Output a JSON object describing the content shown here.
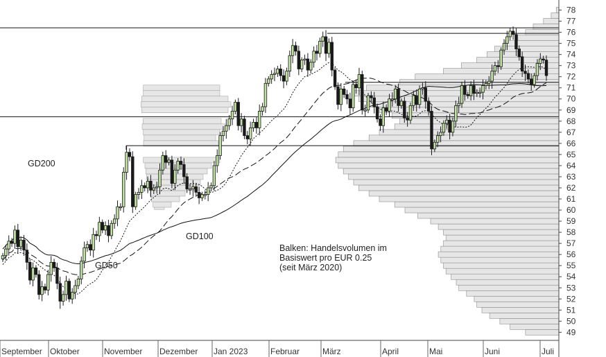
{
  "chart_data": {
    "type": "candlestick",
    "x_axis": {
      "labels": [
        "September",
        "Oktober",
        "November",
        "Dezember",
        "Jan 2023",
        "Februar",
        "März",
        "April",
        "Mai",
        "Juni",
        "Juli"
      ]
    },
    "y_axis": {
      "position": "right",
      "min": 48,
      "max": 78.5,
      "ticks": [
        49,
        50,
        51,
        52,
        53,
        54,
        55,
        56,
        57,
        58,
        59,
        60,
        61,
        62,
        63,
        64,
        65,
        66,
        67,
        68,
        69,
        70,
        71,
        72,
        73,
        74,
        75,
        76,
        77,
        78
      ]
    },
    "moving_average_labels": {
      "gd200": "GD200",
      "gd100": "GD100",
      "gd50": "GD50"
    },
    "annotation": {
      "line1": "Balken: Handelsvolumen im",
      "line2": "Basiswert pro EUR 0.25",
      "line3": "(seit März 2020)"
    },
    "horizontal_lines": [
      76.4,
      75.9,
      68.4,
      65.8,
      71.5
    ],
    "close": [
      55.9,
      56.5,
      57.2,
      57.0,
      58.2,
      56.7,
      57.3,
      56.4,
      55.3,
      53.7,
      54.8,
      54.2,
      52.4,
      53.1,
      52.8,
      54.2,
      55.3,
      54.8,
      53.4,
      51.8,
      52.4,
      53.6,
      52.0,
      52.6,
      53.2,
      53.8,
      55.4,
      56.6,
      56.9,
      56.4,
      57.8,
      57.7,
      58.9,
      58.2,
      58.6,
      57.7,
      58.8,
      59.2,
      60.3,
      60.3,
      63.4,
      65.2,
      64.8,
      60.3,
      61.4,
      61.6,
      62.2,
      62.0,
      62.6,
      61.8,
      62.0,
      62.1,
      63.6,
      64.9,
      64.3,
      64.5,
      62.4,
      63.6,
      64.4,
      64.1,
      63.0,
      61.9,
      61.9,
      62.1,
      61.6,
      61.1,
      61.4,
      61.4,
      62.0,
      62.2,
      64.0,
      64.9,
      66.7,
      67.1,
      67.6,
      68.2,
      68.9,
      69.7,
      67.6,
      68.2,
      66.7,
      66.4,
      67.4,
      67.9,
      67.4,
      68.9,
      69.3,
      71.4,
      71.8,
      72.2,
      72.3,
      72.7,
      72.1,
      71.6,
      72.5,
      73.9,
      74.8,
      74.3,
      72.7,
      73.5,
      73.6,
      72.6,
      73.3,
      74.3,
      74.1,
      75.2,
      75.6,
      74.1,
      75.1,
      72.6,
      71.1,
      69.5,
      70.9,
      70.4,
      70.0,
      69.2,
      71.3,
      71.0,
      72.2,
      69.0,
      69.0,
      70.3,
      70.1,
      69.3,
      68.2,
      67.6,
      69.2,
      68.9,
      70.0,
      70.0,
      70.9,
      69.4,
      69.8,
      68.3,
      68.1,
      69.4,
      70.3,
      69.5,
      70.9,
      71.0,
      69.8,
      68.9,
      65.5,
      66.1,
      66.7,
      67.0,
      67.8,
      68.1,
      67.0,
      68.0,
      69.4,
      69.6,
      71.2,
      70.4,
      70.3,
      71.2,
      70.5,
      70.6,
      70.6,
      71.2,
      71.4,
      71.6,
      72.5,
      73.0,
      72.9,
      74.4,
      75.0,
      75.6,
      76.1,
      75.8,
      74.5,
      73.8,
      72.5,
      72.3,
      71.8,
      71.3,
      72.1,
      73.2,
      73.6,
      73.5,
      72.1
    ],
    "volume_profile": [
      [
        49.0,
        0.13
      ],
      [
        49.5,
        0.19
      ],
      [
        50.0,
        0.23
      ],
      [
        50.5,
        0.27
      ],
      [
        51.0,
        0.3
      ],
      [
        51.5,
        0.32
      ],
      [
        52.0,
        0.33
      ],
      [
        52.5,
        0.36
      ],
      [
        53.0,
        0.39
      ],
      [
        53.5,
        0.4
      ],
      [
        54.0,
        0.42
      ],
      [
        54.5,
        0.44
      ],
      [
        55.0,
        0.45
      ],
      [
        55.5,
        0.46
      ],
      [
        56.0,
        0.47
      ],
      [
        56.5,
        0.46
      ],
      [
        57.0,
        0.45
      ],
      [
        57.5,
        0.44
      ],
      [
        58.0,
        0.45
      ],
      [
        58.5,
        0.47
      ],
      [
        59.0,
        0.5
      ],
      [
        59.5,
        0.55
      ],
      [
        60.0,
        0.6
      ],
      [
        60.5,
        0.64
      ],
      [
        61.0,
        0.7
      ],
      [
        61.5,
        0.74
      ],
      [
        62.0,
        0.78
      ],
      [
        62.5,
        0.8
      ],
      [
        63.0,
        0.82
      ],
      [
        63.5,
        0.84
      ],
      [
        64.0,
        0.86
      ],
      [
        64.5,
        0.87
      ],
      [
        65.0,
        0.86
      ],
      [
        65.5,
        0.84
      ],
      [
        66.0,
        0.8
      ],
      [
        66.5,
        0.74
      ],
      [
        67.0,
        0.7
      ],
      [
        67.5,
        0.64
      ],
      [
        68.0,
        0.62
      ],
      [
        68.5,
        0.65
      ],
      [
        69.0,
        0.7
      ],
      [
        69.5,
        0.75
      ],
      [
        70.0,
        0.78
      ],
      [
        70.5,
        0.8
      ],
      [
        71.0,
        0.75
      ],
      [
        71.5,
        0.62
      ],
      [
        72.0,
        0.56
      ],
      [
        72.5,
        0.45
      ],
      [
        73.0,
        0.38
      ],
      [
        73.5,
        0.32
      ],
      [
        74.0,
        0.28
      ],
      [
        74.5,
        0.25
      ],
      [
        75.0,
        0.21
      ],
      [
        75.5,
        0.16
      ],
      [
        76.0,
        0.13
      ],
      [
        76.5,
        0.1
      ],
      [
        77.0,
        0.06
      ],
      [
        77.5,
        0.03
      ],
      [
        78.0,
        0.01
      ]
    ],
    "volume_profile_left": [
      [
        60.3,
        0.06
      ],
      [
        60.5,
        0.11
      ],
      [
        61.0,
        0.17
      ],
      [
        61.5,
        0.21
      ],
      [
        62.0,
        0.31
      ],
      [
        62.5,
        0.32
      ],
      [
        63.0,
        0.34
      ],
      [
        63.5,
        0.37
      ],
      [
        64.0,
        0.4
      ],
      [
        64.5,
        0.46
      ],
      [
        66.0,
        0.45
      ],
      [
        66.5,
        0.43
      ],
      [
        67.0,
        0.46
      ],
      [
        67.5,
        0.5
      ],
      [
        68.0,
        0.47
      ],
      [
        69.0,
        0.52
      ],
      [
        69.5,
        0.54
      ],
      [
        70.0,
        0.52
      ],
      [
        70.5,
        0.46
      ],
      [
        71.0,
        0.46
      ]
    ]
  }
}
